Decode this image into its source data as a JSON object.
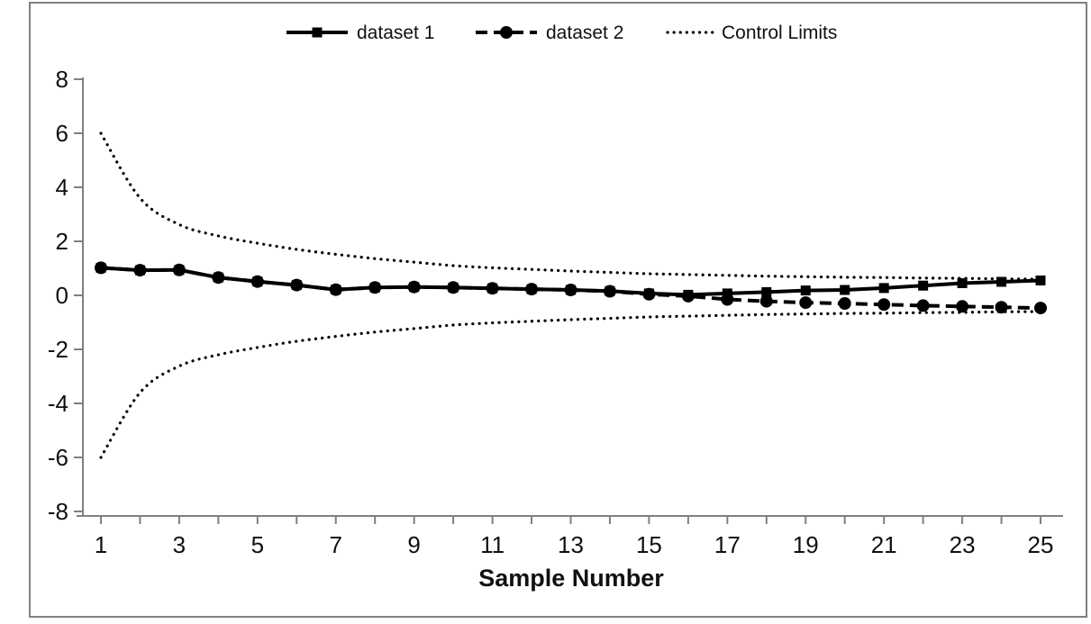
{
  "chart_data": {
    "type": "line",
    "title": "",
    "xlabel": "Sample Number",
    "ylabel": "",
    "x": [
      1,
      2,
      3,
      4,
      5,
      6,
      7,
      8,
      9,
      10,
      11,
      12,
      13,
      14,
      15,
      16,
      17,
      18,
      19,
      20,
      21,
      22,
      23,
      24,
      25
    ],
    "series": [
      {
        "name": "dataset 1",
        "line_style": "solid",
        "marker": "square",
        "color": "#000000",
        "values": [
          1.02,
          0.93,
          0.94,
          0.66,
          0.51,
          0.38,
          0.21,
          0.29,
          0.31,
          0.29,
          0.26,
          0.23,
          0.2,
          0.16,
          0.07,
          0.02,
          0.07,
          0.12,
          0.18,
          0.2,
          0.27,
          0.36,
          0.45,
          0.5,
          0.55
        ]
      },
      {
        "name": "dataset 2",
        "line_style": "dashed",
        "marker": "circle",
        "color": "#000000",
        "values": [
          1.02,
          0.93,
          0.94,
          0.66,
          0.51,
          0.38,
          0.21,
          0.29,
          0.31,
          0.29,
          0.26,
          0.23,
          0.2,
          0.15,
          0.04,
          -0.03,
          -0.15,
          -0.22,
          -0.27,
          -0.3,
          -0.34,
          -0.38,
          -0.41,
          -0.44,
          -0.47
        ]
      }
    ],
    "control_limits": {
      "label": "Control Limits",
      "line_style": "dotted",
      "color": "#000000",
      "upper": [
        6.0,
        3.6,
        2.62,
        2.2,
        1.93,
        1.7,
        1.52,
        1.36,
        1.23,
        1.1,
        1.02,
        0.96,
        0.9,
        0.85,
        0.8,
        0.77,
        0.74,
        0.71,
        0.69,
        0.67,
        0.66,
        0.64,
        0.63,
        0.61,
        0.6
      ],
      "lower": [
        -6.0,
        -3.6,
        -2.62,
        -2.2,
        -1.93,
        -1.7,
        -1.52,
        -1.36,
        -1.23,
        -1.1,
        -1.02,
        -0.96,
        -0.9,
        -0.85,
        -0.8,
        -0.77,
        -0.74,
        -0.71,
        -0.69,
        -0.67,
        -0.66,
        -0.64,
        -0.63,
        -0.61,
        -0.6
      ]
    },
    "axes": {
      "y_ticks": [
        8,
        6,
        4,
        2,
        0,
        -2,
        -4,
        -6,
        -8
      ],
      "y_range": [
        -8,
        8
      ],
      "x_tick_labels": [
        1,
        3,
        5,
        7,
        9,
        11,
        13,
        15,
        17,
        19,
        21,
        23,
        25
      ],
      "x_minor_tick_step": 1,
      "x_range": [
        1,
        25
      ],
      "grid": "off",
      "axis_color": "#808080",
      "label_color": "#111111"
    },
    "legend": {
      "position": "top-center",
      "items": [
        "dataset 1",
        "dataset 2",
        "Control Limits"
      ]
    },
    "frame_color": "#808080",
    "background": "#ffffff"
  }
}
